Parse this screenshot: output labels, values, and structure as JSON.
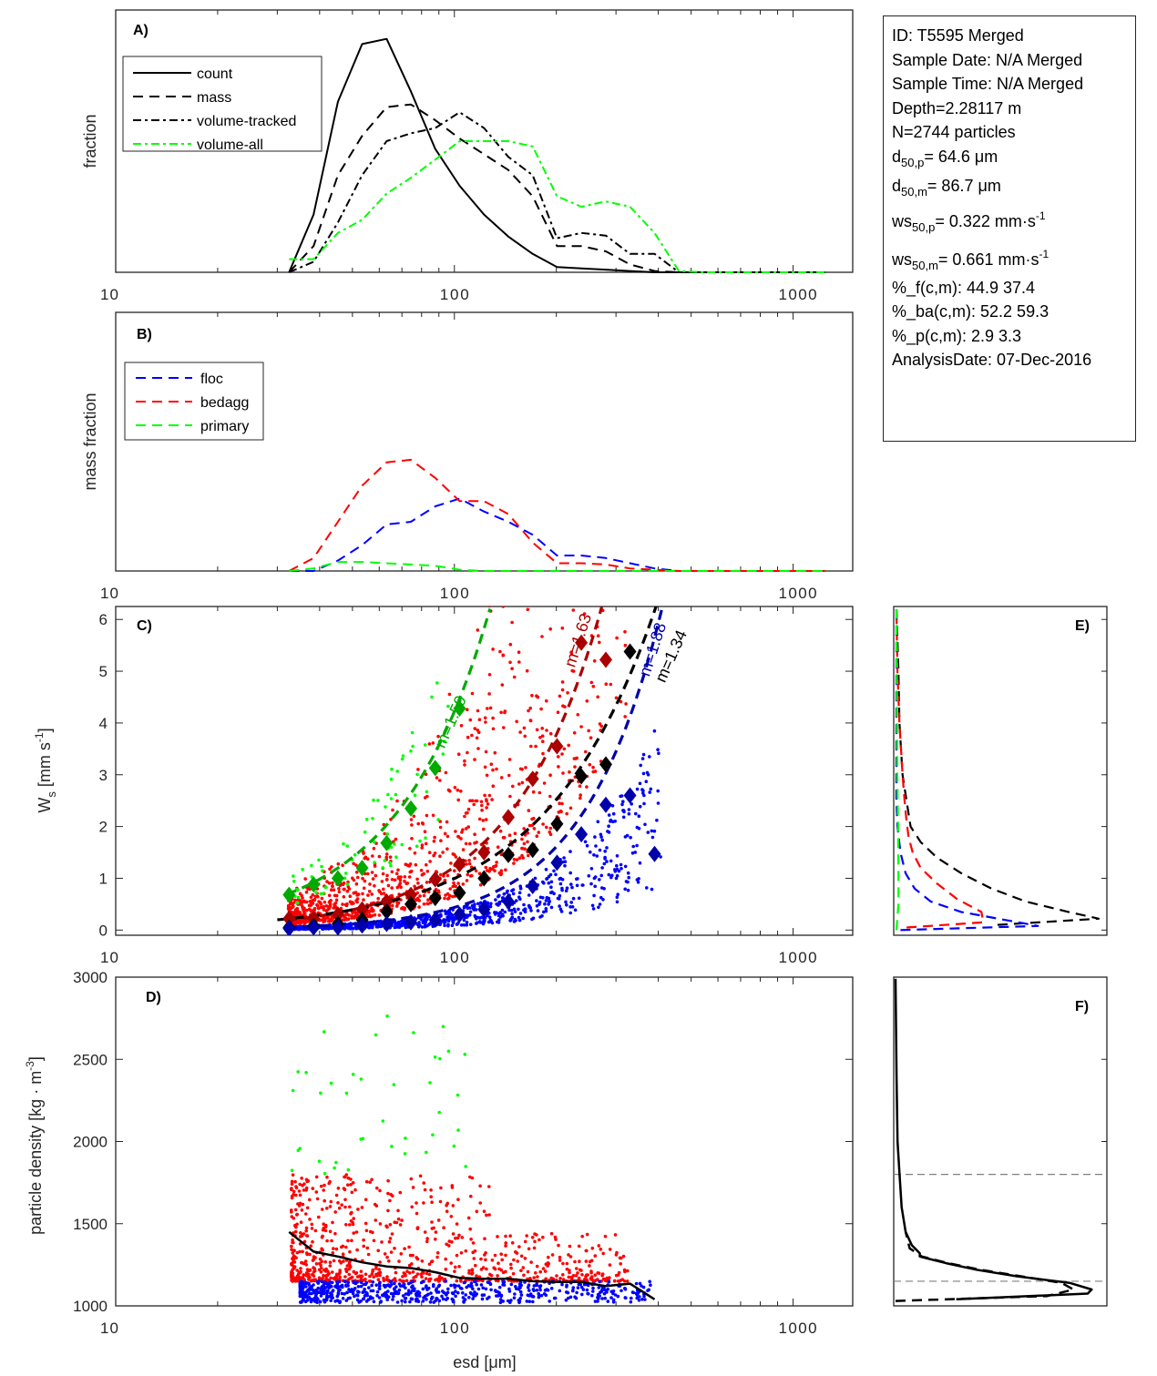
{
  "info_box": {
    "id": "ID: T5595 Merged",
    "sample_date": "Sample Date: N/A Merged",
    "sample_time": "Sample Time: N/A Merged",
    "depth": "Depth=2.28117 m",
    "n": "N=2744 particles",
    "d50p": {
      "base": "d",
      "sub": "50,p",
      "value": "=  64.6 μm"
    },
    "d50m": {
      "base": "d",
      "sub": "50,m",
      "value": "=  86.7 μm"
    },
    "ws50p": {
      "base": "ws",
      "sub": "50,p",
      "value": "= 0.322 mm·s",
      "sup": "-1"
    },
    "ws50m": {
      "base": "ws",
      "sub": "50,m",
      "value": "= 0.661 mm·s",
      "sup": "-1"
    },
    "pct_f": "%_f(c,m): 44.9 37.4",
    "pct_ba": "%_ba(c,m): 52.2 59.3",
    "pct_p": "%_p(c,m): 2.9 3.3",
    "analysis_date": "AnalysisDate: 07-Dec-2016"
  },
  "colors": {
    "black": "#000000",
    "green_bright": "#00ff00",
    "green_dark": "#00aa00",
    "red": "#ff0000",
    "red_dark": "#aa0000",
    "blue": "#0000ff",
    "blue_dark": "#0000aa",
    "gray": "#808080"
  },
  "chart_data": [
    {
      "id": "A",
      "type": "line",
      "panel_label": "A)",
      "xlabel": "",
      "ylabel": "fraction",
      "xscale": "log",
      "xlim": [
        10,
        1500
      ],
      "ylim": [
        0,
        1
      ],
      "xticks": [
        10,
        100,
        1000
      ],
      "xtick_labels": [
        "10",
        "100",
        "1000"
      ],
      "legend": {
        "placement": "top-left",
        "entries": [
          "count",
          "mass",
          "volume-tracked",
          "volume-all"
        ]
      },
      "x": [
        32.5,
        38.4,
        45.3,
        53.4,
        63.1,
        74.4,
        87.8,
        103.6,
        122.3,
        144.3,
        170.3,
        200.9,
        237,
        280,
        330,
        390,
        460,
        543,
        641,
        756,
        892,
        1053,
        1243
      ],
      "series": [
        {
          "name": "count",
          "style": "solid",
          "color": "black",
          "values": [
            0.0,
            0.22,
            0.65,
            0.87,
            0.89,
            0.69,
            0.47,
            0.33,
            0.22,
            0.136,
            0.07,
            0.02,
            0.015,
            0.01,
            0.005,
            0.0,
            0.0,
            0.0,
            0.0,
            0.0,
            0.0,
            0.0,
            0.0
          ]
        },
        {
          "name": "mass",
          "style": "dashed",
          "color": "black",
          "values": [
            0.0,
            0.1,
            0.37,
            0.52,
            0.63,
            0.64,
            0.58,
            0.51,
            0.45,
            0.39,
            0.29,
            0.1,
            0.1,
            0.08,
            0.03,
            0.005,
            0.0,
            0.0,
            0.0,
            0.0,
            0.0,
            0.0,
            0.0
          ]
        },
        {
          "name": "volume-tracked",
          "style": "dashdot",
          "color": "black",
          "values": [
            0.0,
            0.04,
            0.19,
            0.37,
            0.5,
            0.53,
            0.55,
            0.61,
            0.55,
            0.44,
            0.37,
            0.13,
            0.15,
            0.14,
            0.07,
            0.07,
            0.0,
            0.0,
            0.0,
            0.0,
            0.0,
            0.0,
            0.0
          ]
        },
        {
          "name": "volume-all",
          "style": "dashdot",
          "color": "green_bright",
          "values": [
            0.05,
            0.05,
            0.15,
            0.2,
            0.3,
            0.36,
            0.43,
            0.5,
            0.5,
            0.5,
            0.48,
            0.29,
            0.25,
            0.27,
            0.25,
            0.15,
            0.005,
            0.0,
            0.0,
            0.0,
            0.0,
            0.0,
            0.0
          ]
        }
      ]
    },
    {
      "id": "B",
      "type": "line",
      "panel_label": "B)",
      "xlabel": "",
      "ylabel": "mass fraction",
      "xscale": "log",
      "xlim": [
        10,
        1500
      ],
      "ylim": [
        0,
        1
      ],
      "xticks": [
        10,
        100,
        1000
      ],
      "xtick_labels": [
        "10",
        "100",
        "1000"
      ],
      "legend": {
        "placement": "top-left",
        "entries": [
          "floc",
          "bedagg",
          "primary"
        ]
      },
      "x": [
        32.5,
        38.4,
        45.3,
        53.4,
        63.1,
        74.4,
        87.8,
        103.6,
        122.3,
        144.3,
        170.3,
        200.9,
        237,
        280,
        330,
        390,
        460,
        543,
        641,
        756,
        892,
        1053,
        1243
      ],
      "series": [
        {
          "name": "floc",
          "style": "dashed",
          "color": "blue",
          "values": [
            0.0,
            0.0,
            0.04,
            0.1,
            0.18,
            0.19,
            0.25,
            0.28,
            0.23,
            0.19,
            0.14,
            0.06,
            0.06,
            0.05,
            0.03,
            0.01,
            0.0,
            0.0,
            0.0,
            0.0,
            0.0,
            0.0,
            0.0
          ]
        },
        {
          "name": "bedagg",
          "style": "dashed",
          "color": "red",
          "values": [
            0.0,
            0.05,
            0.19,
            0.33,
            0.42,
            0.43,
            0.36,
            0.27,
            0.27,
            0.22,
            0.11,
            0.03,
            0.03,
            0.025,
            0.01,
            0.005,
            0.0,
            0.0,
            0.0,
            0.0,
            0.0,
            0.0,
            0.0
          ]
        },
        {
          "name": "primary",
          "style": "dashed",
          "color": "green_bright",
          "values": [
            0.0,
            0.01,
            0.035,
            0.035,
            0.03,
            0.025,
            0.02,
            0.005,
            0.0,
            0.0,
            0.0,
            0.0,
            0.0,
            0.0,
            0.0,
            0.0,
            0.0,
            0.0,
            0.0,
            0.0,
            0.0,
            0.0,
            0.0
          ]
        }
      ]
    },
    {
      "id": "C",
      "type": "scatter",
      "panel_label": "C)",
      "xlabel": "",
      "ylabel": "W_s [mm s^-1]",
      "ylabel_parts": {
        "base": "W",
        "sub": "s",
        "mid": " [mm s",
        "sup": "-1",
        "end": "]"
      },
      "xscale": "log",
      "xlim": [
        10,
        1500
      ],
      "ylim": [
        -0.1,
        6.25
      ],
      "xticks": [
        10,
        100,
        1000
      ],
      "xtick_labels": [
        "10",
        "100",
        "1000"
      ],
      "yticks": [
        0,
        1,
        2,
        3,
        4,
        5,
        6
      ],
      "ytick_labels": [
        "0",
        "1",
        "2",
        "3",
        "4",
        "5",
        "6"
      ],
      "bin_means": [
        {
          "name": "primary",
          "color": "green_dark",
          "x": [
            32.5,
            38.4,
            45.3,
            53.4,
            63.1,
            74.4,
            87.8,
            103.6
          ],
          "y": [
            0.68,
            0.88,
            1.0,
            1.2,
            1.68,
            2.35,
            3.13,
            4.28
          ]
        },
        {
          "name": "bedagg",
          "color": "red_dark",
          "x": [
            32.5,
            38.4,
            45.3,
            53.4,
            63.1,
            74.4,
            87.8,
            103.6,
            122.3,
            144.3,
            170.3,
            200.9,
            237,
            280
          ],
          "y": [
            0.22,
            0.22,
            0.3,
            0.4,
            0.55,
            0.68,
            0.98,
            1.27,
            1.5,
            2.18,
            2.92,
            3.55,
            5.55,
            5.22
          ]
        },
        {
          "name": "all",
          "color": "black",
          "x": [
            32.5,
            38.4,
            45.3,
            53.4,
            63.1,
            74.4,
            87.8,
            103.6,
            122.3,
            144.3,
            170.3,
            200.9,
            237,
            280,
            330
          ],
          "y": [
            0.05,
            0.08,
            0.12,
            0.2,
            0.36,
            0.5,
            0.62,
            0.72,
            1.0,
            1.45,
            1.55,
            2.05,
            2.97,
            3.2,
            5.38
          ]
        },
        {
          "name": "floc",
          "color": "blue_dark",
          "x": [
            32.5,
            38.4,
            45.3,
            53.4,
            63.1,
            74.4,
            87.8,
            103.6,
            122.3,
            144.3,
            170.3,
            200.9,
            237,
            280,
            330,
            390
          ],
          "y": [
            0.03,
            0.05,
            0.05,
            0.09,
            0.12,
            0.15,
            0.2,
            0.3,
            0.4,
            0.55,
            0.85,
            1.3,
            1.85,
            2.42,
            2.6,
            1.47
          ]
        }
      ],
      "fits": [
        {
          "name": "primary",
          "color": "green_dark",
          "label": "m=1.59",
          "m": 1.59,
          "a": 0.00279
        },
        {
          "name": "bedagg",
          "color": "red_dark",
          "label": "m=1.63",
          "m": 1.63,
          "a": 0.00067
        },
        {
          "name": "all",
          "color": "black",
          "label": "m=1.34",
          "m": 1.34,
          "a": 0.00208,
          "x0": 30
        },
        {
          "name": "floc",
          "color": "blue_dark",
          "label": "m=1.88",
          "m": 1.88,
          "a": 7.6e-05
        }
      ]
    },
    {
      "id": "D",
      "type": "scatter",
      "panel_label": "D)",
      "xlabel": "esd [μm]",
      "ylabel": "particle density [kg · m^-3]",
      "ylabel_parts": {
        "base": "particle density [kg · m",
        "sup": "-3",
        "end": "]"
      },
      "xscale": "log",
      "xlim": [
        10,
        1500
      ],
      "ylim": [
        1000,
        3000
      ],
      "xticks": [
        10,
        100,
        1000
      ],
      "xtick_labels": [
        "10",
        "100",
        "1000"
      ],
      "yticks": [
        1000,
        1500,
        2000,
        2500,
        3000
      ],
      "ytick_labels": [
        "1000",
        "1500",
        "2000",
        "2500",
        "3000"
      ],
      "median_line": {
        "color": "black",
        "x": [
          32.5,
          38.4,
          45.3,
          53.4,
          63.1,
          74.4,
          87.8,
          103.6,
          122.3,
          144.3,
          170.3,
          200.9,
          237,
          280,
          330,
          390
        ],
        "y": [
          1450,
          1330,
          1300,
          1265,
          1240,
          1230,
          1205,
          1170,
          1165,
          1165,
          1150,
          1145,
          1145,
          1120,
          1135,
          1040
        ]
      },
      "point_groups": [
        {
          "name": "primary",
          "color": "green_bright",
          "density_range": [
            1800,
            2780
          ],
          "x_range": [
            33,
            110
          ],
          "count": 80
        },
        {
          "name": "bedagg",
          "color": "red",
          "density_range": [
            1150,
            1800
          ],
          "x_range": [
            33,
            330
          ],
          "count": 1600
        },
        {
          "name": "floc",
          "color": "blue",
          "density_range": [
            1020,
            1150
          ],
          "x_range": [
            35,
            380
          ],
          "count": 1230
        }
      ]
    },
    {
      "id": "E",
      "type": "line",
      "panel_label": "E)",
      "orientation": "vertical-distribution",
      "ylim": [
        -0.1,
        6.25
      ],
      "series": [
        {
          "name": "all",
          "color": "black",
          "style": "dashed",
          "y": [
            0.1,
            0.22,
            0.35,
            0.55,
            0.8,
            1.1,
            1.4,
            1.7,
            2.0,
            2.5,
            3.0,
            4.0,
            5.0,
            6.2
          ],
          "density": [
            0.5,
            1.0,
            0.85,
            0.64,
            0.47,
            0.32,
            0.2,
            0.12,
            0.07,
            0.05,
            0.03,
            0.015,
            0.01,
            0.0
          ]
        },
        {
          "name": "bedagg",
          "color": "red",
          "style": "dashed",
          "y": [
            0.05,
            0.15,
            0.35,
            0.6,
            0.9,
            1.2,
            1.5,
            1.8,
            2.1,
            2.5,
            3.0,
            4.0,
            5.0,
            6.2
          ],
          "density": [
            0.05,
            0.43,
            0.42,
            0.3,
            0.2,
            0.12,
            0.08,
            0.06,
            0.05,
            0.04,
            0.03,
            0.015,
            0.005,
            0.0
          ]
        },
        {
          "name": "floc",
          "color": "blue",
          "style": "dashed",
          "y": [
            0.0,
            0.08,
            0.2,
            0.35,
            0.55,
            0.8,
            1.1,
            1.5,
            2.0,
            2.5,
            3.0,
            4.0,
            6.2
          ],
          "density": [
            0.02,
            0.7,
            0.53,
            0.32,
            0.17,
            0.09,
            0.045,
            0.02,
            0.005,
            0.0,
            0.0,
            0.0,
            0.0
          ]
        },
        {
          "name": "primary",
          "color": "green_bright",
          "style": "dashed",
          "y": [
            0.0,
            0.5,
            1.0,
            2.0,
            3.0,
            4.0,
            5.0,
            6.2
          ],
          "density": [
            0.0,
            0.01,
            0.01,
            0.008,
            0.004,
            0.003,
            0.002,
            0.0
          ]
        }
      ]
    },
    {
      "id": "F",
      "type": "line",
      "panel_label": "F)",
      "orientation": "vertical-distribution",
      "ylim": [
        1000,
        3000
      ],
      "reference_lines": [
        1800,
        1150
      ],
      "series": [
        {
          "name": "density-dist-solid",
          "color": "black",
          "style": "solid",
          "y": [
            1040,
            1075,
            1100,
            1140,
            1180,
            1220,
            1260,
            1300,
            1320,
            1370,
            1450,
            1600,
            1800,
            2000,
            2400,
            2990
          ],
          "density": [
            0.3,
            0.95,
            0.97,
            0.86,
            0.6,
            0.4,
            0.25,
            0.12,
            0.12,
            0.08,
            0.05,
            0.03,
            0.02,
            0.01,
            0.005,
            0.0
          ]
        },
        {
          "name": "density-dist-dashed",
          "color": "black",
          "style": "dashed",
          "y": [
            1030,
            1060,
            1100,
            1140,
            1180,
            1220,
            1260,
            1300,
            1350,
            1450
          ],
          "density": [
            0.0,
            0.75,
            0.88,
            0.82,
            0.62,
            0.42,
            0.26,
            0.13,
            0.07,
            0.05
          ]
        }
      ]
    }
  ]
}
